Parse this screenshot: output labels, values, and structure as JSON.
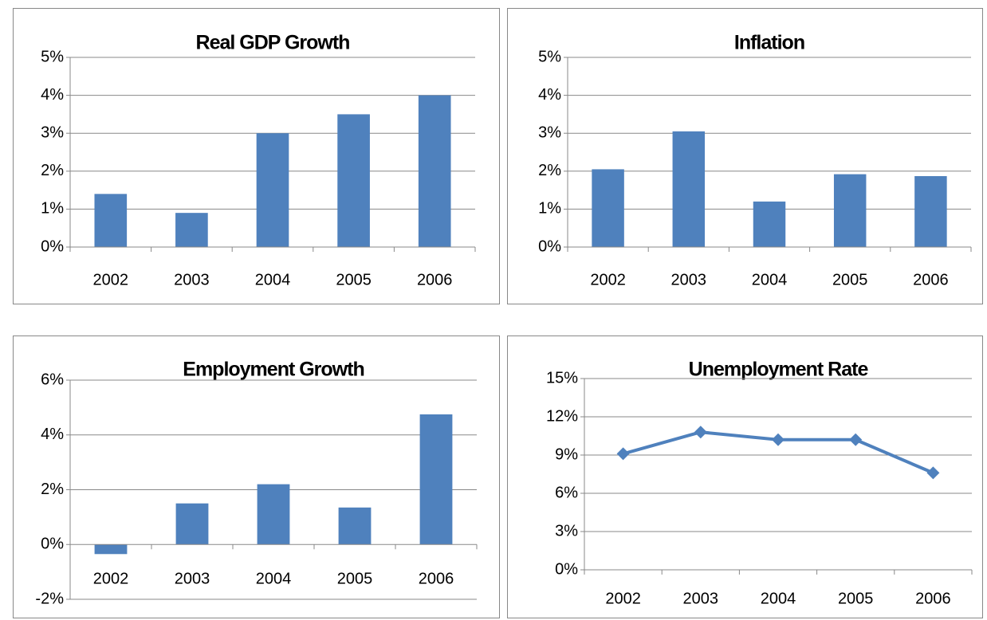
{
  "chart_data": [
    {
      "type": "bar",
      "title": "Real GDP Growth",
      "categories": [
        "2002",
        "2003",
        "2004",
        "2005",
        "2006"
      ],
      "values": [
        1.4,
        0.9,
        3.0,
        3.5,
        4.0
      ],
      "color": "#4f81bd",
      "grid": true,
      "ylim": [
        0,
        5
      ],
      "yticks": [
        {
          "value": 0,
          "label": "0%"
        },
        {
          "value": 1,
          "label": "1%"
        },
        {
          "value": 2,
          "label": "2%"
        },
        {
          "value": 3,
          "label": "3%"
        },
        {
          "value": 4,
          "label": "4%"
        },
        {
          "value": 5,
          "label": "5%"
        }
      ]
    },
    {
      "type": "bar",
      "title": "Inflation",
      "categories": [
        "2002",
        "2003",
        "2004",
        "2005",
        "2006"
      ],
      "values": [
        2.05,
        3.05,
        1.2,
        1.92,
        1.87
      ],
      "color": "#4f81bd",
      "grid": true,
      "ylim": [
        0,
        5
      ],
      "yticks": [
        {
          "value": 0,
          "label": "0%"
        },
        {
          "value": 1,
          "label": "1%"
        },
        {
          "value": 2,
          "label": "2%"
        },
        {
          "value": 3,
          "label": "3%"
        },
        {
          "value": 4,
          "label": "4%"
        },
        {
          "value": 5,
          "label": "5%"
        }
      ]
    },
    {
      "type": "bar",
      "title": "Employment Growth",
      "categories": [
        "2002",
        "2003",
        "2004",
        "2005",
        "2006"
      ],
      "values": [
        -0.35,
        1.5,
        2.2,
        1.35,
        4.75
      ],
      "color": "#4f81bd",
      "grid": true,
      "ylim": [
        -2,
        6
      ],
      "yticks": [
        {
          "value": -2,
          "label": "-2%"
        },
        {
          "value": 0,
          "label": "0%"
        },
        {
          "value": 2,
          "label": "2%"
        },
        {
          "value": 4,
          "label": "4%"
        },
        {
          "value": 6,
          "label": "6%"
        }
      ]
    },
    {
      "type": "line",
      "title": "Unemployment Rate",
      "categories": [
        "2002",
        "2003",
        "2004",
        "2005",
        "2006"
      ],
      "values": [
        9.1,
        10.8,
        10.2,
        10.2,
        7.6
      ],
      "color": "#4f81bd",
      "grid": true,
      "ylim": [
        0,
        15
      ],
      "yticks": [
        {
          "value": 0,
          "label": "0%"
        },
        {
          "value": 3,
          "label": "3%"
        },
        {
          "value": 6,
          "label": "6%"
        },
        {
          "value": 9,
          "label": "9%"
        },
        {
          "value": 12,
          "label": "12%"
        },
        {
          "value": 15,
          "label": "15%"
        }
      ]
    }
  ]
}
